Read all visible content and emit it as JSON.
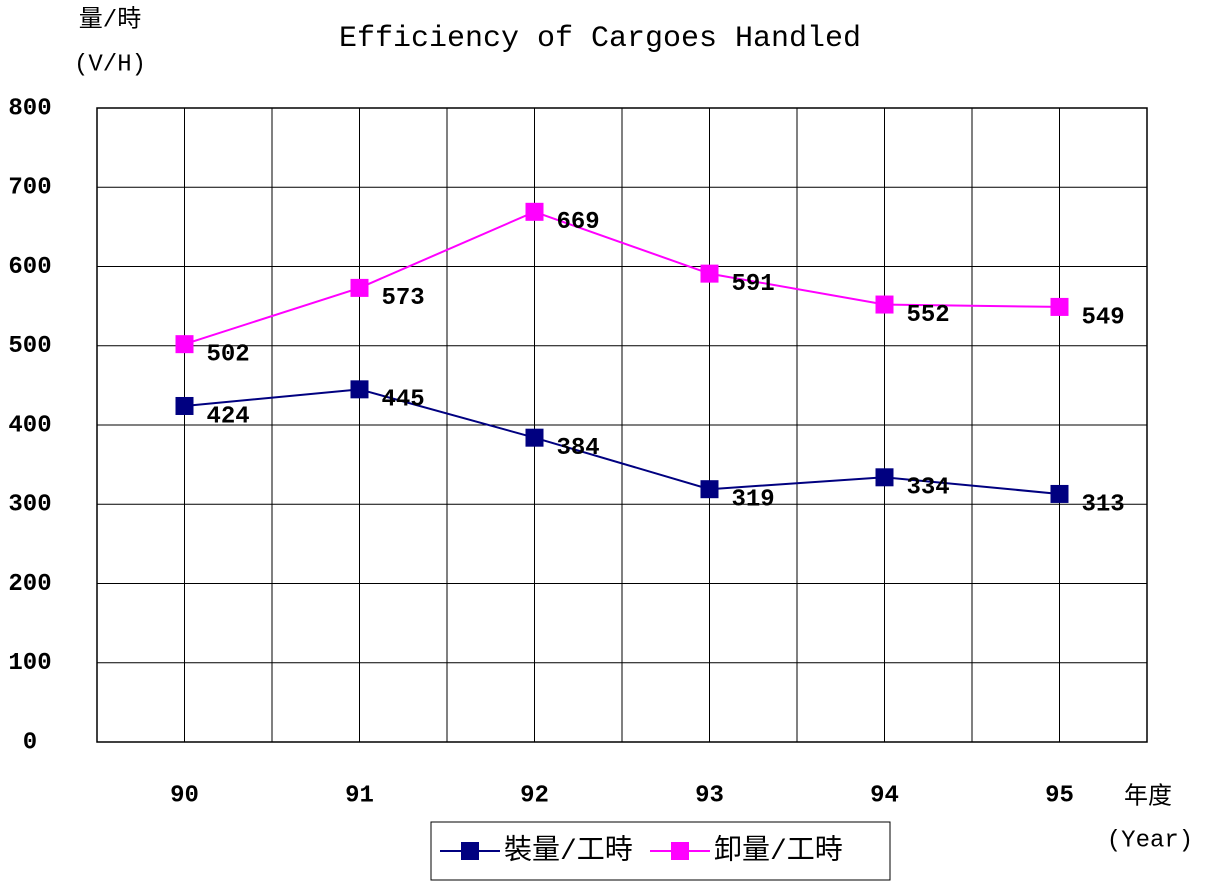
{
  "chart_data": {
    "type": "line",
    "title": "Efficiency of Cargoes Handled",
    "y_label": [
      "量/時",
      "(V/H)"
    ],
    "x_label": [
      "年度",
      "(Year)"
    ],
    "categories": [
      "90",
      "91",
      "92",
      "93",
      "94",
      "95"
    ],
    "series": [
      {
        "name": "裝量/工時",
        "color": "#000080",
        "values": [
          424,
          445,
          384,
          319,
          334,
          313
        ]
      },
      {
        "name": "卸量/工時",
        "color": "#ff00ff",
        "values": [
          502,
          573,
          669,
          591,
          552,
          549
        ]
      }
    ],
    "ylim": [
      0,
      800
    ],
    "yticks": [
      0,
      100,
      200,
      300,
      400,
      500,
      600,
      700,
      800
    ],
    "grid": true,
    "legend": "bottom"
  }
}
